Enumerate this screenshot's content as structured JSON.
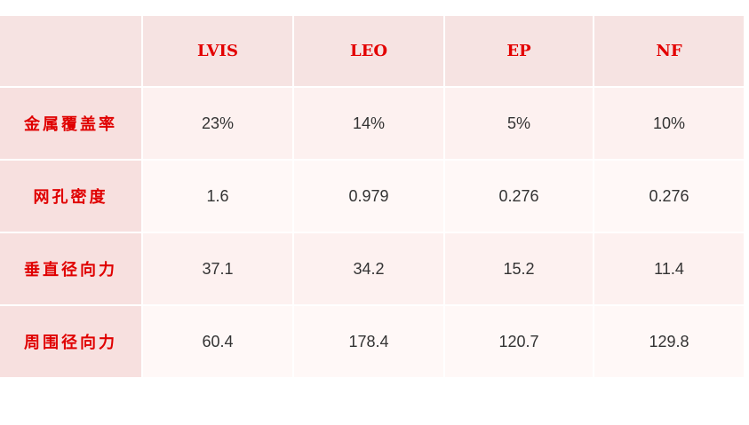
{
  "table": {
    "headers": [
      "LVIS",
      "LEO",
      "EP",
      "NF"
    ],
    "rows": [
      [
        "金属覆盖率",
        "23%",
        "14%",
        "5%",
        "10%"
      ],
      [
        "网孔密度",
        "1.6",
        "0.979",
        "0.276",
        "0.276"
      ],
      [
        "垂直径向力",
        "37.1",
        "34.2",
        "15.2",
        "11.4"
      ],
      [
        "周围径向力",
        "60.4",
        "178.4",
        "120.7",
        "129.8"
      ]
    ]
  }
}
